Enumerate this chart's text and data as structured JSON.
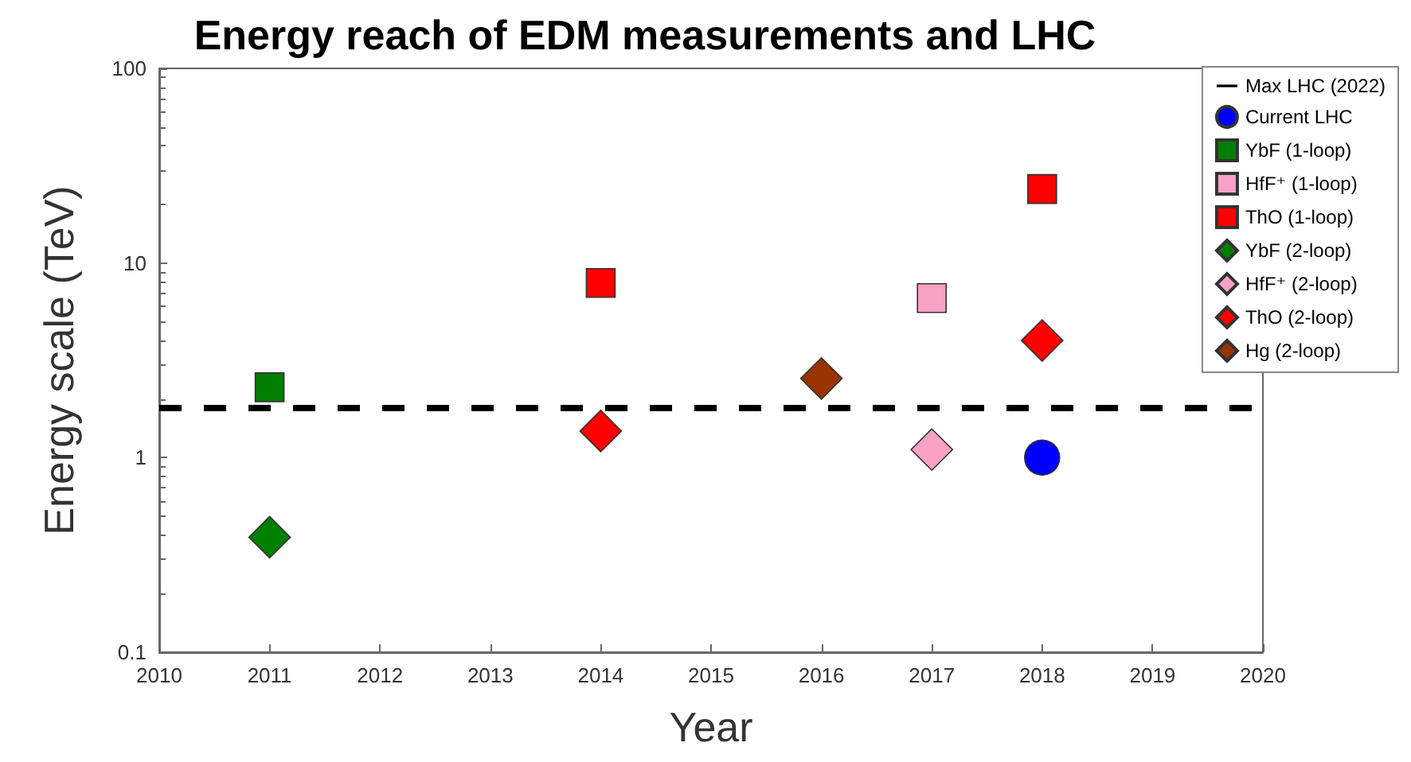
{
  "chart_data": {
    "type": "scatter",
    "title": "Energy reach of EDM measurements and LHC",
    "xlabel": "Year",
    "ylabel": "Energy scale (TeV)",
    "log": "y",
    "grid": false,
    "legend": "top right",
    "xlim": [
      2010,
      2020
    ],
    "xticks": [
      2010,
      2011,
      2012,
      2013,
      2014,
      2015,
      2016,
      2017,
      2018,
      2019,
      2020
    ],
    "ylim": [
      0.1,
      100
    ],
    "yticks": [
      0.1,
      1,
      10,
      100
    ],
    "series": [
      {
        "name": "Max LHC (2022)",
        "type": "line",
        "line_style": "dashed",
        "marker": "none",
        "color": "#000000",
        "x": [
          2010,
          2020
        ],
        "values": [
          1.8,
          1.8
        ]
      },
      {
        "name": "Current LHC",
        "marker": "circle",
        "color": "#0000ff",
        "x": [
          2018
        ],
        "values": [
          1.0
        ]
      },
      {
        "name": "YbF (1-loop)",
        "marker": "square",
        "color": "#007f00",
        "x": [
          2011
        ],
        "values": [
          2.3
        ]
      },
      {
        "name": "HfF⁺ (1-loop)",
        "marker": "square",
        "color": "#f7a1c4",
        "x": [
          2017
        ],
        "values": [
          6.6
        ]
      },
      {
        "name": "ThO (1-loop)",
        "marker": "square",
        "color": "#ff0000",
        "x": [
          2014,
          2018
        ],
        "values": [
          7.9,
          24
        ]
      },
      {
        "name": "YbF (2-loop)",
        "marker": "diamond",
        "color": "#007f00",
        "x": [
          2011
        ],
        "values": [
          0.39
        ]
      },
      {
        "name": "HfF⁺ (2-loop)",
        "marker": "diamond",
        "color": "#f7a1c4",
        "x": [
          2017
        ],
        "values": [
          1.1
        ]
      },
      {
        "name": "ThO (2-loop)",
        "marker": "diamond",
        "color": "#ff0000",
        "x": [
          2014,
          2018
        ],
        "values": [
          1.37,
          4.0
        ]
      },
      {
        "name": "Hg (2-loop)",
        "marker": "diamond",
        "color": "#993300",
        "x": [
          2016
        ],
        "values": [
          2.55
        ]
      }
    ]
  }
}
